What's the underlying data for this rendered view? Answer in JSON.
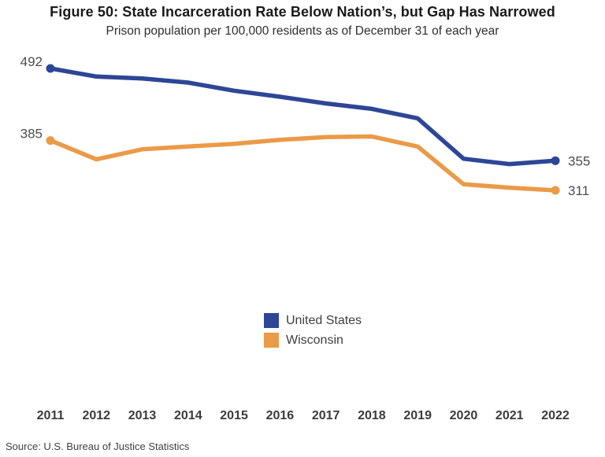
{
  "figure": {
    "title": "Figure 50: State Incarceration Rate Below Nation’s, but Gap Has Narrowed",
    "subtitle": "Prison population per 100,000 residents as of December 31 of each year",
    "source": "Source: U.S. Bureau of Justice Statistics"
  },
  "chart_data": {
    "type": "line",
    "title": "Figure 50: State Incarceration Rate Below Nation’s, but Gap Has Narrowed",
    "subtitle": "Prison population per 100,000 residents as of December 31 of each year",
    "categories": [
      "2011",
      "2012",
      "2013",
      "2014",
      "2015",
      "2016",
      "2017",
      "2018",
      "2019",
      "2020",
      "2021",
      "2022"
    ],
    "series": [
      {
        "name": "United States",
        "color": "#2e4697",
        "values": [
          492,
          480,
          477,
          471,
          459,
          450,
          440,
          432,
          418,
          358,
          350,
          355
        ],
        "start_label": "492",
        "end_label": "355"
      },
      {
        "name": "Wisconsin",
        "color": "#eb9a47",
        "values": [
          385,
          357,
          372,
          376,
          380,
          386,
          390,
          391,
          376,
          320,
          315,
          311
        ],
        "start_label": "385",
        "end_label": "311"
      }
    ],
    "xlabel": "",
    "ylabel": "",
    "ylim": [
      311,
      492
    ],
    "grid": false,
    "y_axis_shown": false,
    "legend_position": "bottom-center",
    "labeled_points": "first and last value of each series"
  }
}
